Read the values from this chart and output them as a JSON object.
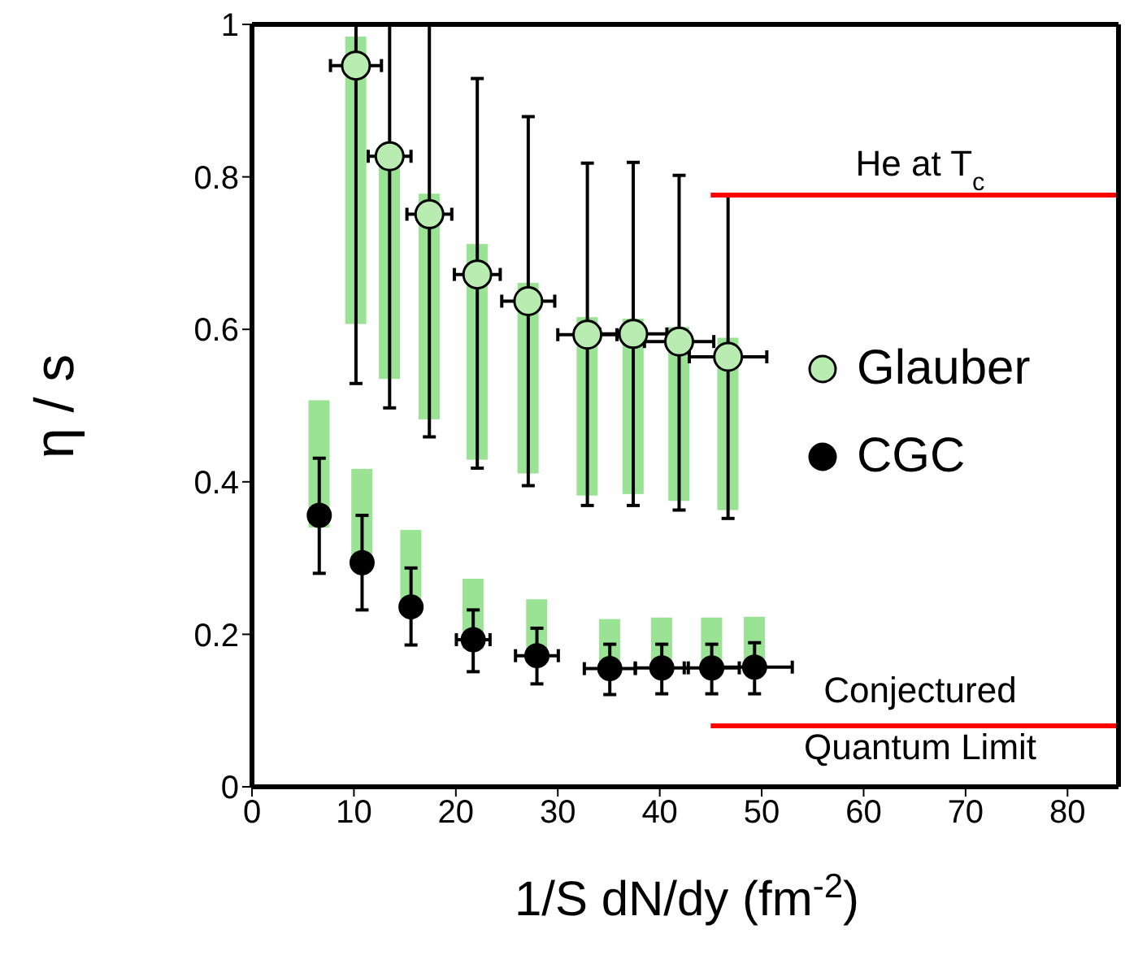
{
  "chart_data": {
    "type": "scatter",
    "xlabel": "1/S dN/dy (fm$^{-2}$)",
    "ylabel": "η / s",
    "xlim": [
      0,
      85
    ],
    "xticks": [
      0,
      10,
      20,
      30,
      40,
      50,
      60,
      70,
      80
    ],
    "ylim": [
      0,
      1
    ],
    "yticks": [
      0,
      0.2,
      0.4,
      0.6,
      0.8,
      1
    ],
    "legend": "right",
    "marker": "circle",
    "series": [
      {
        "type": "bar",
        "color": "#9be394",
        "x": [
          6.6,
          10.2,
          10.8,
          13.5,
          15.6,
          17.4,
          21.7,
          22.1,
          27.1,
          27.95,
          32.9,
          35.1,
          37.4,
          40.2,
          41.9,
          45.1,
          46.7,
          49.3
        ],
        "base": [
          0.34,
          0.607,
          0.3,
          0.535,
          0.237,
          0.482,
          0.181,
          0.429,
          0.411,
          0.166,
          0.382,
          0.156,
          0.384,
          0.16,
          0.375,
          0.16,
          0.363,
          0.16
        ],
        "values": [
          0.167,
          0.377,
          0.117,
          0.307,
          0.1,
          0.296,
          0.092,
          0.283,
          0.25,
          0.08,
          0.234,
          0.064,
          0.23,
          0.062,
          0.228,
          0.062,
          0.226,
          0.063
        ]
      },
      {
        "name": "Glauber",
        "color": "#b8ecb0",
        "x": [
          10.2,
          13.5,
          17.4,
          22.1,
          27.1,
          32.9,
          37.4,
          41.9,
          46.7
        ],
        "values": [
          0.946,
          0.827,
          0.751,
          0.672,
          0.637,
          0.593,
          0.594,
          0.584,
          0.564
        ],
        "errors": [
          [
            0.529,
            1
          ],
          [
            0.497,
            1
          ],
          [
            0.459,
            1
          ],
          [
            0.418,
            0.929
          ],
          [
            0.395,
            0.879
          ],
          [
            0.369,
            0.818
          ],
          [
            0.369,
            0.819
          ],
          [
            0.363,
            0.802
          ],
          [
            0.352,
            0.776
          ]
        ],
        "xerrors": [
          2.5,
          2.1,
          2.2,
          2.25,
          2.6,
          2.9,
          3.3,
          3.4,
          3.8
        ]
      },
      {
        "name": "CGC",
        "color": "#000000",
        "x": [
          6.6,
          10.8,
          15.6,
          21.7,
          27.95,
          35.1,
          40.2,
          45.1,
          49.3
        ],
        "values": [
          0.356,
          0.294,
          0.236,
          0.193,
          0.172,
          0.155,
          0.156,
          0.156,
          0.157
        ],
        "errors": [
          [
            0.28,
            0.431
          ],
          [
            0.232,
            0.356
          ],
          [
            0.186,
            0.287
          ],
          [
            0.151,
            0.232
          ],
          [
            0.135,
            0.208
          ],
          [
            0.121,
            0.187
          ],
          [
            0.122,
            0.187
          ],
          [
            0.122,
            0.187
          ],
          [
            0.122,
            0.189
          ]
        ],
        "xerrors": [
          null,
          null,
          null,
          1.65,
          2.1,
          2.5,
          2.6,
          2.7,
          3.7
        ]
      },
      {
        "type": "line",
        "marker": "none",
        "color": "#ff0000",
        "x": [
          45,
          85
        ],
        "values": [
          0.776,
          0.776
        ]
      },
      {
        "type": "line",
        "marker": "none",
        "color": "#ff0000",
        "x": [
          45,
          85
        ],
        "values": [
          0.08,
          0.08
        ]
      }
    ],
    "annotations": [
      "He at T$_{c}$",
      "Conjectured",
      "Quantum Limit"
    ]
  }
}
